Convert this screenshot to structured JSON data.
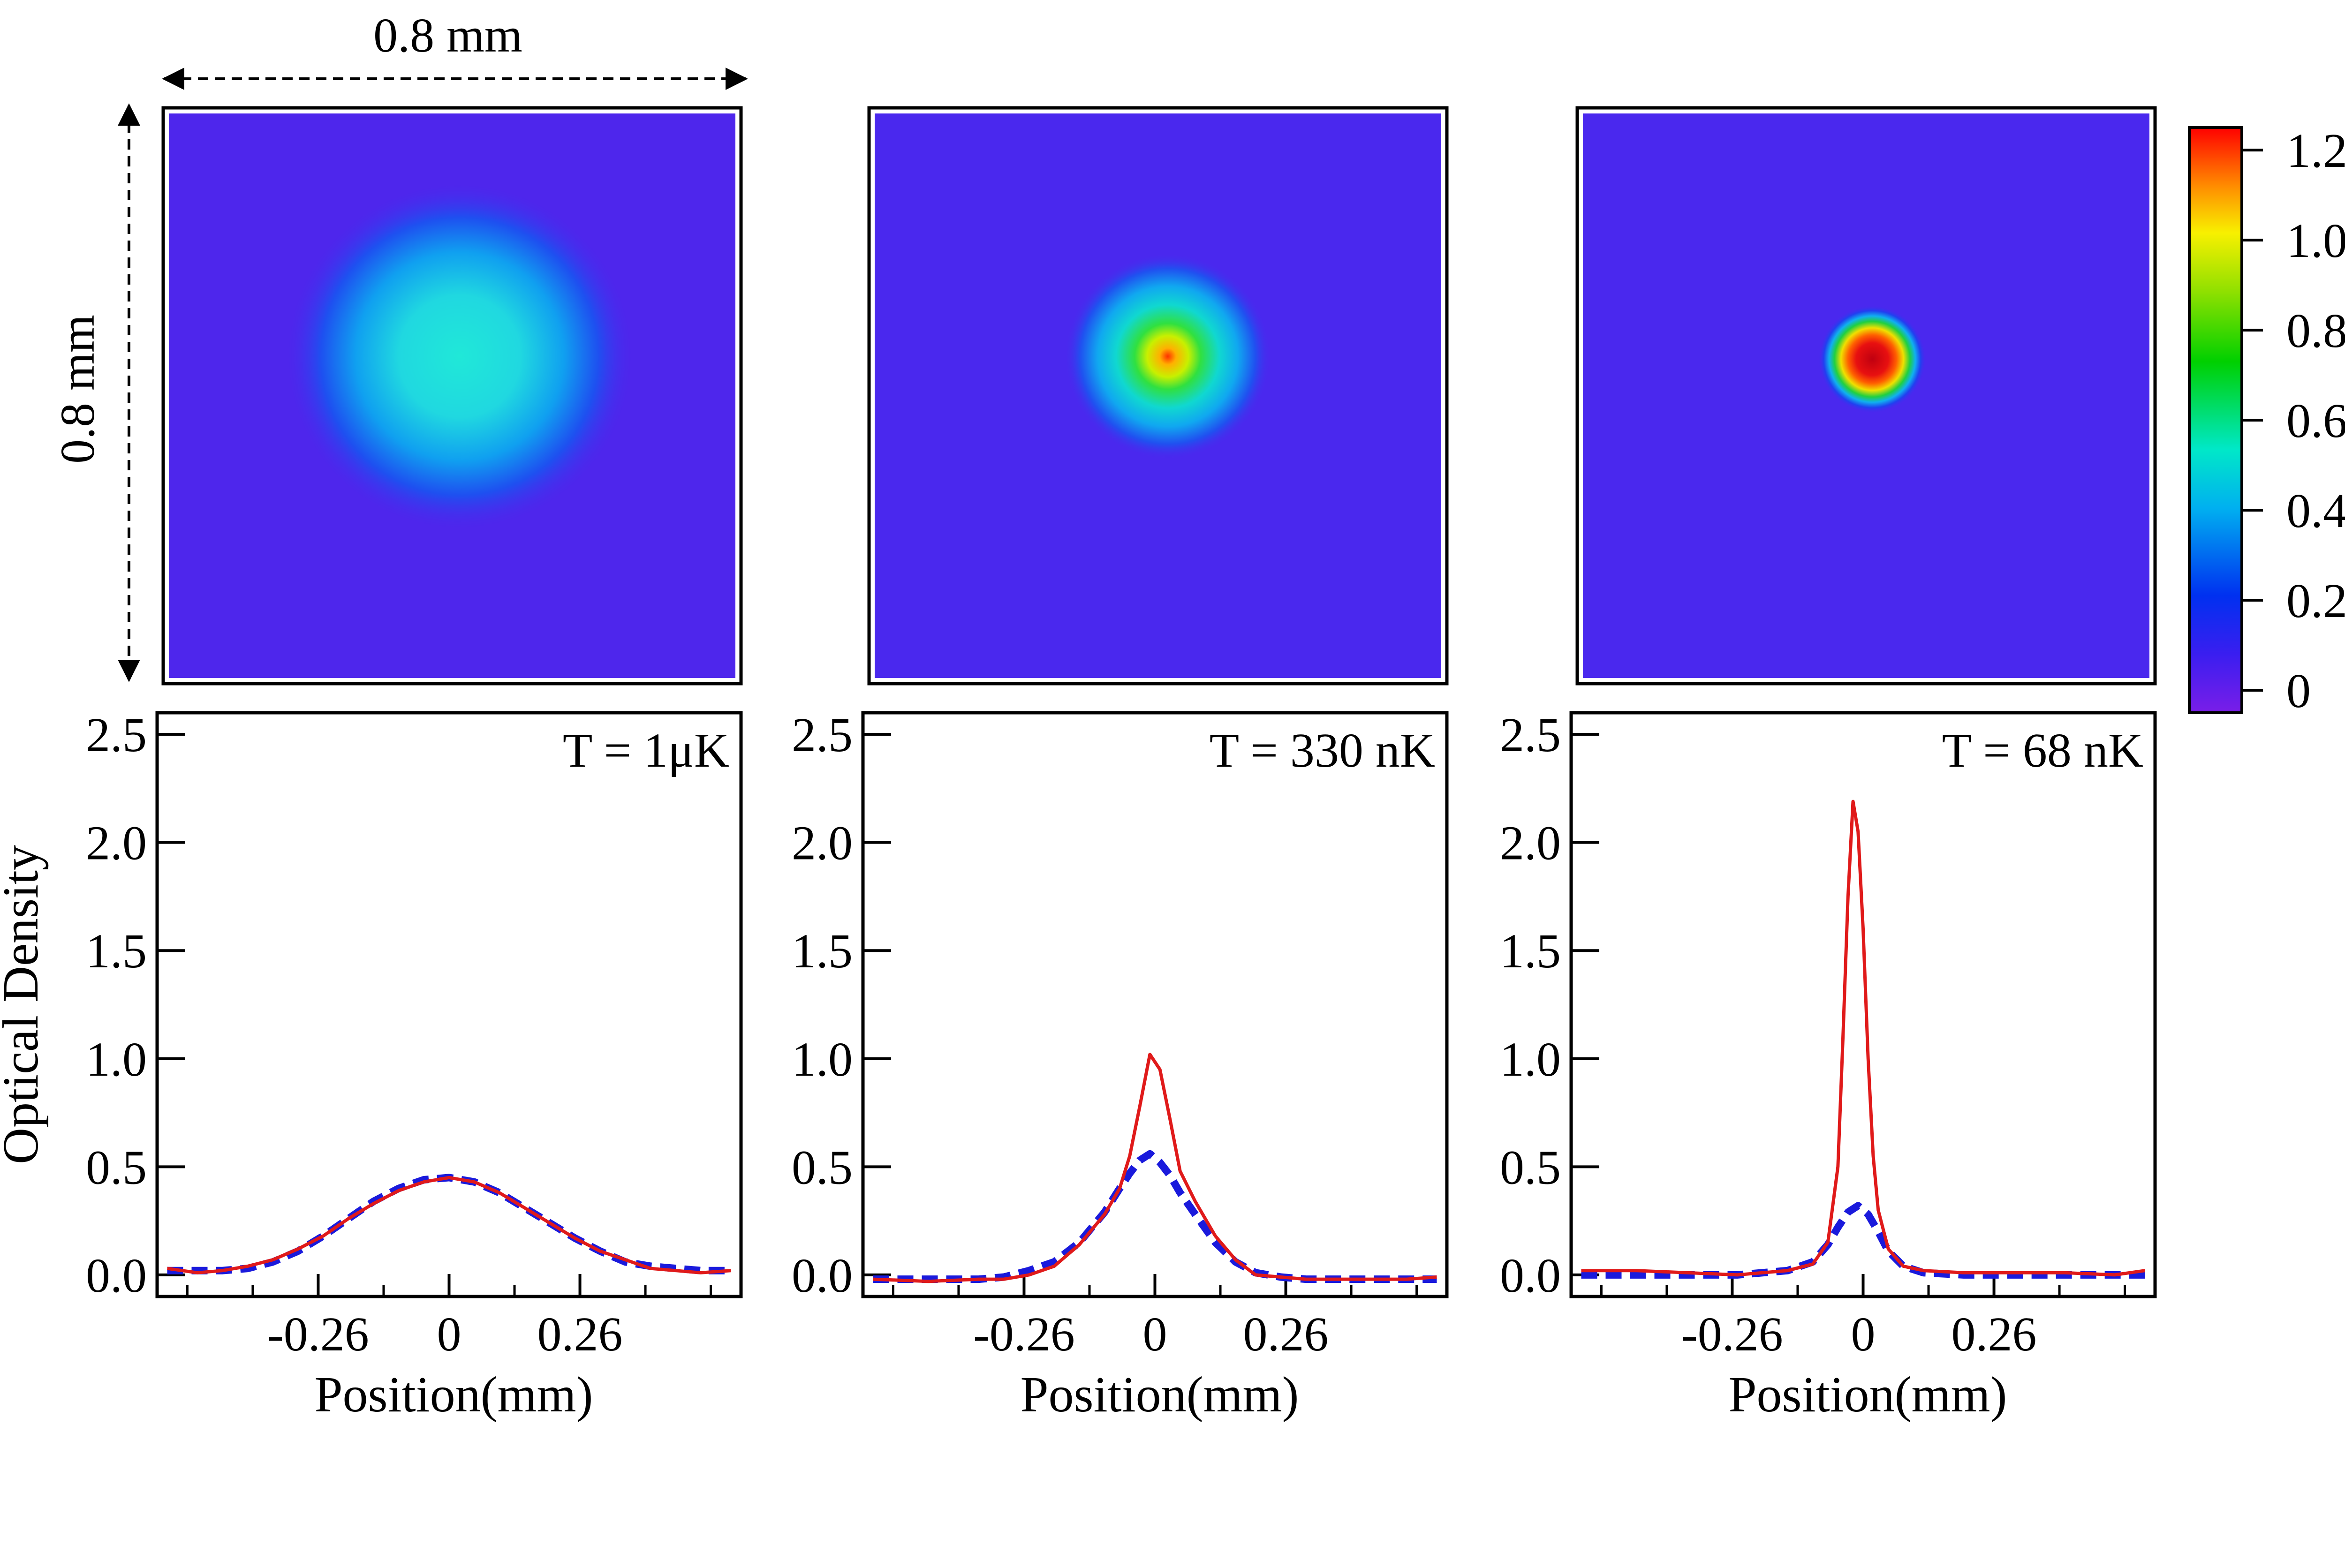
{
  "dimension_labels": {
    "horizontal": "0.8 mm",
    "vertical": "0.8 mm"
  },
  "colorbar": {
    "ticks": [
      "1.2",
      "1.0",
      "0.8",
      "0.6",
      "0.4",
      "0.2",
      "0"
    ],
    "range": [
      -0.05,
      1.25
    ]
  },
  "images": [
    {
      "peak_od": 0.4,
      "cloud": "broad thermal"
    },
    {
      "peak_od": 1.05,
      "cloud": "bimodal"
    },
    {
      "peak_od": 1.2,
      "cloud": "condensate"
    }
  ],
  "chart_data": [
    {
      "type": "line",
      "annotation": "T = 1μK",
      "xlabel": "Position(mm)",
      "ylabel": "Optical Density",
      "xlim": [
        -0.58,
        0.58
      ],
      "ylim": [
        -0.1,
        2.6
      ],
      "xticks": [
        "-0.26",
        "0",
        "0.26"
      ],
      "yticks": [
        "2.5",
        "2.0",
        "1.5",
        "1.0",
        "0.5",
        "0.0"
      ],
      "series": [
        {
          "color": "#e01a1a",
          "style": "solid",
          "x": [
            -0.56,
            -0.5,
            -0.45,
            -0.4,
            -0.35,
            -0.3,
            -0.25,
            -0.2,
            -0.15,
            -0.1,
            -0.05,
            0,
            0.05,
            0.1,
            0.15,
            0.2,
            0.25,
            0.3,
            0.35,
            0.4,
            0.45,
            0.5,
            0.56
          ],
          "y": [
            0.03,
            0.01,
            0.02,
            0.04,
            0.07,
            0.12,
            0.18,
            0.26,
            0.33,
            0.39,
            0.43,
            0.45,
            0.43,
            0.38,
            0.31,
            0.24,
            0.17,
            0.11,
            0.07,
            0.03,
            0.02,
            0.01,
            0.02
          ]
        },
        {
          "color": "#1a1adc",
          "style": "dashed",
          "x": [
            -0.56,
            -0.5,
            -0.45,
            -0.4,
            -0.35,
            -0.3,
            -0.25,
            -0.2,
            -0.15,
            -0.1,
            -0.05,
            0,
            0.05,
            0.1,
            0.15,
            0.2,
            0.25,
            0.3,
            0.35,
            0.4,
            0.45,
            0.5,
            0.56
          ],
          "y": [
            0.02,
            0.02,
            0.02,
            0.03,
            0.06,
            0.11,
            0.18,
            0.26,
            0.34,
            0.4,
            0.44,
            0.45,
            0.43,
            0.38,
            0.31,
            0.24,
            0.17,
            0.11,
            0.06,
            0.04,
            0.03,
            0.02,
            0.02
          ]
        }
      ]
    },
    {
      "type": "line",
      "annotation": "T = 330 nK",
      "xlabel": "Position(mm)",
      "ylabel": "",
      "xlim": [
        -0.58,
        0.58
      ],
      "ylim": [
        -0.1,
        2.6
      ],
      "xticks": [
        "-0.26",
        "0",
        "0.26"
      ],
      "yticks": [
        "2.5",
        "2.0",
        "1.5",
        "1.0",
        "0.5",
        "0.0"
      ],
      "series": [
        {
          "color": "#e01a1a",
          "style": "solid",
          "x": [
            -0.56,
            -0.45,
            -0.35,
            -0.3,
            -0.25,
            -0.2,
            -0.15,
            -0.1,
            -0.07,
            -0.05,
            -0.03,
            -0.01,
            0.01,
            0.03,
            0.05,
            0.08,
            0.12,
            0.16,
            0.2,
            0.25,
            0.3,
            0.4,
            0.5,
            0.56
          ],
          "y": [
            -0.02,
            -0.03,
            -0.02,
            -0.02,
            0.0,
            0.04,
            0.14,
            0.28,
            0.4,
            0.55,
            0.78,
            1.02,
            0.95,
            0.72,
            0.48,
            0.34,
            0.18,
            0.07,
            0.0,
            -0.01,
            -0.02,
            -0.02,
            -0.02,
            -0.01
          ]
        },
        {
          "color": "#1a1adc",
          "style": "dashed",
          "x": [
            -0.56,
            -0.45,
            -0.35,
            -0.3,
            -0.25,
            -0.2,
            -0.15,
            -0.1,
            -0.07,
            -0.05,
            -0.03,
            -0.01,
            0.01,
            0.03,
            0.05,
            0.08,
            0.12,
            0.16,
            0.2,
            0.25,
            0.3,
            0.4,
            0.5,
            0.56
          ],
          "y": [
            -0.02,
            -0.02,
            -0.02,
            -0.01,
            0.02,
            0.06,
            0.15,
            0.29,
            0.4,
            0.47,
            0.53,
            0.56,
            0.52,
            0.46,
            0.38,
            0.28,
            0.15,
            0.06,
            0.01,
            -0.01,
            -0.02,
            -0.02,
            -0.02,
            -0.02
          ]
        }
      ]
    },
    {
      "type": "line",
      "annotation": "T = 68 nK",
      "xlabel": "Position(mm)",
      "ylabel": "",
      "xlim": [
        -0.58,
        0.58
      ],
      "ylim": [
        -0.1,
        2.6
      ],
      "xticks": [
        "-0.26",
        "0",
        "0.26"
      ],
      "yticks": [
        "2.5",
        "2.0",
        "1.5",
        "1.0",
        "0.5",
        "0.0"
      ],
      "series": [
        {
          "color": "#e01a1a",
          "style": "solid",
          "x": [
            -0.56,
            -0.45,
            -0.35,
            -0.25,
            -0.15,
            -0.1,
            -0.07,
            -0.05,
            -0.04,
            -0.03,
            -0.02,
            -0.01,
            0.0,
            0.01,
            0.02,
            0.03,
            0.05,
            0.08,
            0.12,
            0.2,
            0.3,
            0.4,
            0.5,
            0.56
          ],
          "y": [
            0.02,
            0.02,
            0.01,
            0.0,
            0.02,
            0.05,
            0.15,
            0.5,
            1.1,
            1.75,
            2.19,
            2.05,
            1.6,
            1.0,
            0.55,
            0.3,
            0.12,
            0.04,
            0.02,
            0.01,
            0.01,
            0.01,
            0.0,
            0.02
          ]
        },
        {
          "color": "#1a1adc",
          "style": "dashed",
          "x": [
            -0.56,
            -0.45,
            -0.35,
            -0.25,
            -0.15,
            -0.1,
            -0.07,
            -0.05,
            -0.03,
            -0.01,
            0.01,
            0.03,
            0.05,
            0.08,
            0.12,
            0.2,
            0.3,
            0.4,
            0.5,
            0.56
          ],
          "y": [
            0.0,
            0.0,
            0.0,
            0.0,
            0.02,
            0.06,
            0.14,
            0.22,
            0.29,
            0.32,
            0.28,
            0.2,
            0.11,
            0.04,
            0.01,
            0.0,
            0.0,
            0.0,
            0.0,
            0.0
          ]
        }
      ]
    }
  ]
}
